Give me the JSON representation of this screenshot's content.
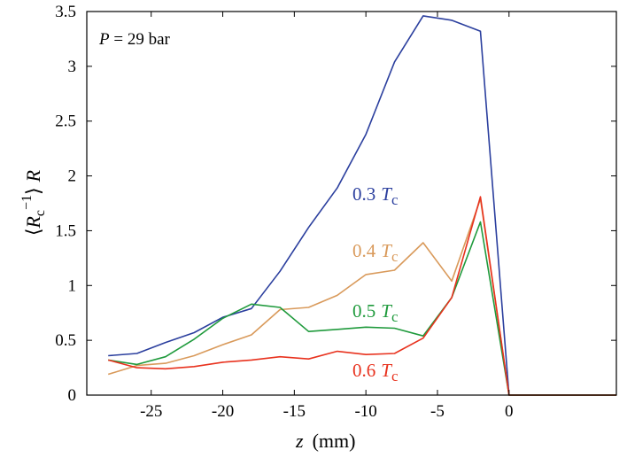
{
  "chart_data": {
    "type": "line",
    "title": "",
    "annotation": {
      "var": "P",
      "text": " = 29 bar"
    },
    "xlabel": {
      "var": "z",
      "unit": "(mm)"
    },
    "ylabel": {
      "open": "⟨",
      "R": "R",
      "sub": "c",
      "sup": "−1",
      "close": "⟩",
      "tail": "R"
    },
    "xlim": [
      -29.5,
      7.5
    ],
    "ylim": [
      0,
      3.5
    ],
    "xticks": [
      -25,
      -20,
      -15,
      -10,
      -5,
      0
    ],
    "xtick_labels": [
      "-25",
      "-20",
      "-15",
      "-10",
      "-5",
      "0"
    ],
    "yticks": [
      0,
      0.5,
      1,
      1.5,
      2,
      2.5,
      3,
      3.5
    ],
    "ytick_labels": [
      "0",
      "0.5",
      "1",
      "1.5",
      "2",
      "2.5",
      "3",
      "3.5"
    ],
    "grid": false,
    "series": [
      {
        "name": "0.3 Tc",
        "label_num": "0.3",
        "label_T": "T",
        "label_sub": "c",
        "color": "#2b3f9e",
        "x": [
          -28,
          -26,
          -24,
          -22,
          -20,
          -18,
          -16,
          -14,
          -12,
          -10,
          -8,
          -6,
          -4,
          -2,
          0,
          7.5
        ],
        "y": [
          0.36,
          0.38,
          0.48,
          0.57,
          0.71,
          0.79,
          1.13,
          1.53,
          1.89,
          2.38,
          3.04,
          3.46,
          3.42,
          3.32,
          0.0,
          0.0
        ]
      },
      {
        "name": "0.4 Tc",
        "label_num": "0.4",
        "label_T": "T",
        "label_sub": "c",
        "color": "#d99a5b",
        "x": [
          -28,
          -26,
          -24,
          -22,
          -20,
          -18,
          -16,
          -14,
          -12,
          -10,
          -8,
          -6,
          -4,
          -2,
          0,
          7.5
        ],
        "y": [
          0.19,
          0.27,
          0.29,
          0.36,
          0.46,
          0.55,
          0.78,
          0.8,
          0.91,
          1.1,
          1.14,
          1.39,
          1.04,
          1.79,
          0.0,
          0.0
        ]
      },
      {
        "name": "0.5 Tc",
        "label_num": "0.5",
        "label_T": "T",
        "label_sub": "c",
        "color": "#1f9a3c",
        "x": [
          -28,
          -26,
          -24,
          -22,
          -20,
          -18,
          -16,
          -14,
          -12,
          -10,
          -8,
          -6,
          -4,
          -2,
          0,
          7.5
        ],
        "y": [
          0.32,
          0.28,
          0.35,
          0.51,
          0.7,
          0.83,
          0.8,
          0.58,
          0.6,
          0.62,
          0.61,
          0.54,
          0.89,
          1.58,
          0.0,
          0.0
        ]
      },
      {
        "name": "0.6 Tc",
        "label_num": "0.6",
        "label_T": "T",
        "label_sub": "c",
        "color": "#e8321e",
        "x": [
          -28,
          -26,
          -24,
          -22,
          -20,
          -18,
          -16,
          -14,
          -12,
          -10,
          -8,
          -6,
          -4,
          -2,
          0,
          7.5
        ],
        "y": [
          0.32,
          0.25,
          0.24,
          0.26,
          0.3,
          0.32,
          0.35,
          0.33,
          0.4,
          0.37,
          0.38,
          0.52,
          0.89,
          1.81,
          0.0,
          0.0
        ]
      }
    ]
  }
}
